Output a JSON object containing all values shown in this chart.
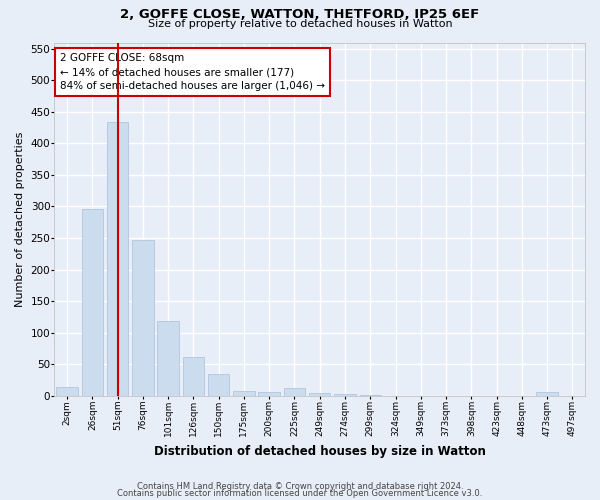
{
  "title1": "2, GOFFE CLOSE, WATTON, THETFORD, IP25 6EF",
  "title2": "Size of property relative to detached houses in Watton",
  "xlabel": "Distribution of detached houses by size in Watton",
  "ylabel": "Number of detached properties",
  "categories": [
    "2sqm",
    "26sqm",
    "51sqm",
    "76sqm",
    "101sqm",
    "126sqm",
    "150sqm",
    "175sqm",
    "200sqm",
    "225sqm",
    "249sqm",
    "274sqm",
    "299sqm",
    "324sqm",
    "349sqm",
    "373sqm",
    "398sqm",
    "423sqm",
    "448sqm",
    "473sqm",
    "497sqm"
  ],
  "values": [
    14,
    296,
    434,
    247,
    118,
    62,
    35,
    7,
    5,
    12,
    4,
    2,
    1,
    0,
    0,
    0,
    0,
    0,
    0,
    6,
    0
  ],
  "bar_color": "#ccdcef",
  "bar_edge_color": "#aabfdb",
  "vline_color": "#cc0000",
  "vline_index": 2.5,
  "ylim": [
    0,
    560
  ],
  "yticks": [
    0,
    50,
    100,
    150,
    200,
    250,
    300,
    350,
    400,
    450,
    500,
    550
  ],
  "annotation_line1": "2 GOFFE CLOSE: 68sqm",
  "annotation_line2": "← 14% of detached houses are smaller (177)",
  "annotation_line3": "84% of semi-detached houses are larger (1,046) →",
  "annotation_box_facecolor": "#ffffff",
  "annotation_box_edgecolor": "#cc0000",
  "footer1": "Contains HM Land Registry data © Crown copyright and database right 2024.",
  "footer2": "Contains public sector information licensed under the Open Government Licence v3.0.",
  "bg_color": "#e8eef8",
  "plot_bg_color": "#e8eef8",
  "grid_color": "#ffffff",
  "title1_fontsize": 9.5,
  "title2_fontsize": 8,
  "ylabel_fontsize": 8,
  "xlabel_fontsize": 8.5,
  "tick_fontsize": 6.5,
  "ytick_fontsize": 7.5,
  "annotation_fontsize": 7.5,
  "footer_fontsize": 6
}
